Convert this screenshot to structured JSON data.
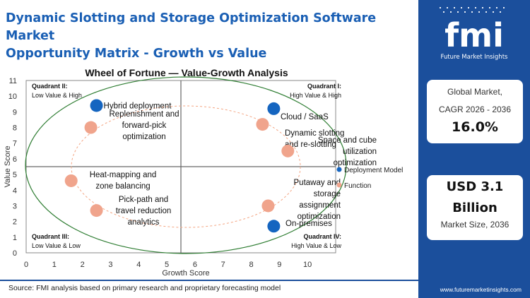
{
  "header": {
    "title_line1": "Dynamic Slotting and Storage Optimization Software Market",
    "title_line2": "Opportunity Matrix - Growth vs Value"
  },
  "brand": {
    "logo_text": "fmi",
    "logo_subtext": "Future Market Insights",
    "url": "www.futuremarketinsights.com"
  },
  "stats": {
    "cagr_label_line1": "Global Market,",
    "cagr_label_line2": "CAGR 2026 - 2036",
    "cagr_value": "16.0%",
    "size_value_line1": "USD 3.1",
    "size_value_line2": "Billion",
    "size_label": "Market Size, 2036"
  },
  "footer": {
    "source": "Source: FMI analysis based on primary research and proprietary forecasting model"
  },
  "colors": {
    "brand_blue": "#1b4f9c",
    "title_blue": "#1a5fb4",
    "deployment": "#1565c0",
    "function": "#f0a48c",
    "ellipse": "#2e7d32",
    "inner_ellipse": "#f4a582"
  },
  "chart_data": {
    "type": "scatter",
    "title": "Wheel of Fortune — Value-Growth Analysis",
    "xlabel": "Growth Score",
    "ylabel": "Value Score",
    "xlim": [
      0,
      11
    ],
    "ylim": [
      0,
      11
    ],
    "xticks": [
      0,
      1,
      2,
      3,
      4,
      5,
      6,
      7,
      8,
      9,
      10
    ],
    "yticks": [
      0,
      1,
      2,
      3,
      4,
      5,
      6,
      7,
      8,
      9,
      10,
      11
    ],
    "grid": false,
    "legend_position": "right",
    "quadrant_divider": {
      "x": 5.5,
      "y": 5.5
    },
    "quadrants": [
      {
        "id": "q2",
        "name": "Quadrant II:",
        "desc": "Low Value & High"
      },
      {
        "id": "q1",
        "name": "Quadrant I:",
        "desc": "High Value & High"
      },
      {
        "id": "q3",
        "name": "Quadrant III:",
        "desc": "Low Value & Low"
      },
      {
        "id": "q4",
        "name": "Quadrant IV:",
        "desc": "High Value & Low"
      }
    ],
    "series": [
      {
        "name": "Deployment Model",
        "points": [
          {
            "label": "Hybrid deployment",
            "x": 2.5,
            "y": 9.4
          },
          {
            "label": "Cloud / SaaS",
            "x": 8.8,
            "y": 9.2
          },
          {
            "label": "On-premises",
            "x": 8.8,
            "y": 1.7
          }
        ]
      },
      {
        "name": "Function",
        "points": [
          {
            "label": "Replenishment and forward-pick optimization",
            "x": 2.3,
            "y": 8.0
          },
          {
            "label": "Dynamic slotting and re-slotting",
            "x": 8.4,
            "y": 8.2
          },
          {
            "label": "Space and cube utilization optimization",
            "x": 9.3,
            "y": 6.5
          },
          {
            "label": "Heat-mapping and zone balancing",
            "x": 1.6,
            "y": 4.6
          },
          {
            "label": "Pick-path and travel reduction analytics",
            "x": 2.5,
            "y": 2.7
          },
          {
            "label": "Putaway and storage assignment optimization",
            "x": 8.6,
            "y": 3.0
          }
        ]
      }
    ]
  }
}
